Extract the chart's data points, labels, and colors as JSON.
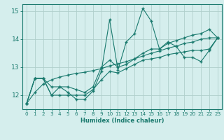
{
  "xlabel": "Humidex (Indice chaleur)",
  "x": [
    0,
    1,
    2,
    3,
    4,
    5,
    6,
    7,
    8,
    9,
    10,
    11,
    12,
    13,
    14,
    15,
    16,
    17,
    18,
    19,
    20,
    21,
    22,
    23
  ],
  "y_main": [
    11.7,
    12.6,
    12.6,
    12.0,
    12.3,
    12.1,
    11.85,
    11.85,
    12.15,
    12.85,
    14.7,
    12.9,
    13.9,
    14.2,
    15.1,
    14.65,
    13.65,
    13.9,
    13.75,
    13.35,
    13.35,
    13.2,
    13.6,
    14.05
  ],
  "y_upper": [
    11.7,
    12.6,
    12.6,
    12.3,
    12.3,
    12.3,
    12.2,
    12.1,
    12.3,
    13.0,
    13.25,
    13.0,
    13.1,
    13.3,
    13.5,
    13.65,
    13.65,
    13.85,
    13.95,
    14.05,
    14.15,
    14.2,
    14.35,
    14.05
  ],
  "y_lower": [
    11.7,
    12.6,
    12.6,
    12.0,
    12.0,
    12.0,
    12.0,
    12.0,
    12.2,
    12.55,
    12.85,
    12.8,
    12.95,
    13.1,
    13.25,
    13.3,
    13.35,
    13.45,
    13.5,
    13.55,
    13.6,
    13.6,
    13.65,
    14.05
  ],
  "y_trend": [
    11.7,
    12.1,
    12.4,
    12.55,
    12.65,
    12.72,
    12.78,
    12.82,
    12.88,
    12.95,
    13.05,
    13.12,
    13.2,
    13.3,
    13.4,
    13.5,
    13.58,
    13.68,
    13.75,
    13.85,
    13.9,
    14.0,
    14.05,
    14.05
  ],
  "line_color": "#1a7a6e",
  "bg_color": "#d5eeed",
  "grid_color": "#b0cfcc",
  "ylim": [
    11.5,
    15.25
  ],
  "yticks": [
    12,
    13,
    14,
    15
  ]
}
